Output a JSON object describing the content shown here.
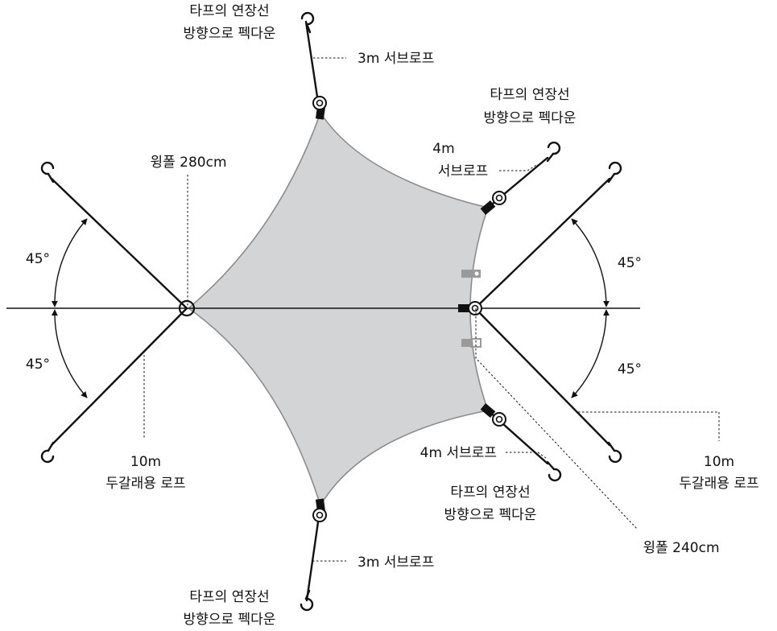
{
  "labels": {
    "peg_direction_line1": "타프의 연장선",
    "peg_direction_line2": "방향으로 펙다운",
    "sub_rope_3m": "3m 서브로프",
    "sub_rope_4m": "4m 서브로프",
    "sub_rope_4m_line1": "4m",
    "sub_rope_4m_line2": "서브로프",
    "pole_280": "윙폴 280cm",
    "pole_240": "윙폴 240cm",
    "angle_45": "45°",
    "guy_rope_line1": "10m",
    "guy_rope_line2": "두갈래용 로프"
  },
  "colors": {
    "tarp_fill": "#d3d4d6",
    "tarp_edge": "#8c8c8c",
    "line": "#111111",
    "clip_gray": "#9a9a9a"
  },
  "icons": [
    "tent-peg-icon",
    "pole-ring-icon",
    "tie-knot-icon",
    "arrowhead-icon"
  ]
}
